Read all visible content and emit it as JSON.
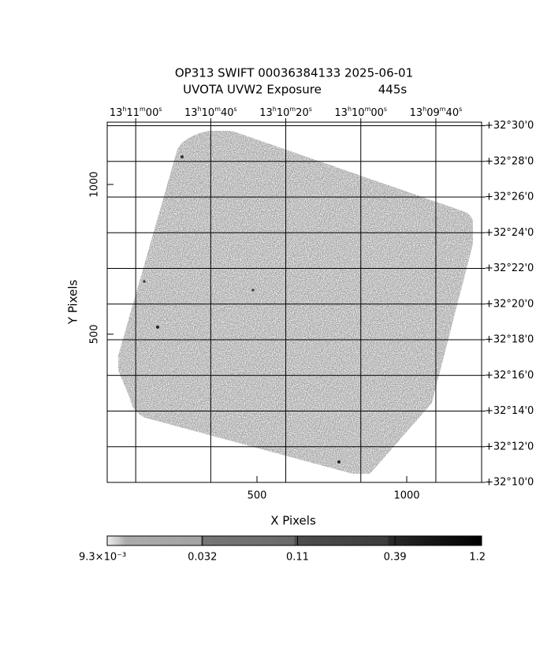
{
  "chart_data": {
    "type": "image",
    "title": "OP313 SWIFT 00036384133 2025-06-01",
    "subtitle": "UVOTA UVW2 Exposure",
    "exposure": "445s",
    "xlabel": "X Pixels",
    "ylabel": "Y Pixels",
    "xlim": [
      0,
      1250
    ],
    "xticks": [
      500,
      1000
    ],
    "ylim": [
      5,
      1208
    ],
    "yticks": [
      500,
      1000
    ],
    "x2lim": [
      667.6,
      567.8
    ],
    "x2ticks": [
      {
        "value": 660,
        "label": "13h11m00s"
      },
      {
        "value": 640,
        "label": "13h10m40s"
      },
      {
        "value": 620,
        "label": "13h10m20s"
      },
      {
        "value": 600,
        "label": "13h10m00s"
      },
      {
        "value": 580,
        "label": "13h09m40s"
      }
    ],
    "y2lim": [
      10,
      30.2
    ],
    "y2ticks": [
      {
        "value": 30,
        "label": "+32°30'0"
      },
      {
        "value": 28,
        "label": "+32°28'0"
      },
      {
        "value": 26,
        "label": "+32°26'0"
      },
      {
        "value": 24,
        "label": "+32°24'0"
      },
      {
        "value": 22,
        "label": "+32°22'0"
      },
      {
        "value": 20,
        "label": "+32°20'0"
      },
      {
        "value": 18,
        "label": "+32°18'0"
      },
      {
        "value": 16,
        "label": "+32°16'0"
      },
      {
        "value": 14,
        "label": "+32°14'0"
      },
      {
        "value": 12,
        "label": "+32°12'0"
      },
      {
        "value": 10,
        "label": "+32°10'0"
      }
    ],
    "grid": true,
    "colorbar": {
      "log": true,
      "lim": [
        0.0093,
        1.2
      ],
      "ticks": [
        {
          "value": 0.0093,
          "label": "9.3×10⁻³"
        },
        0.032,
        0.11,
        0.39,
        1.2
      ]
    }
  }
}
